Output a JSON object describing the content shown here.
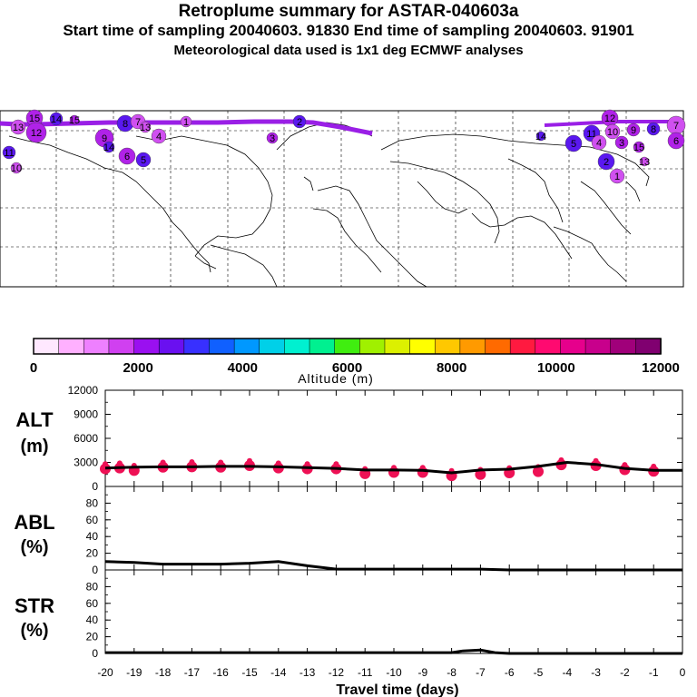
{
  "header": {
    "title": "Retroplume summary for ASTAR-040603a",
    "sampling": "Start time of sampling 20040603. 91830     End time of sampling 20040603. 91901",
    "met": "Meteorological data used is 1x1 deg ECMWF analyses"
  },
  "colors": {
    "line": "#000000",
    "track": "#9a1fe6",
    "alt_dots": "#ee1155",
    "colorbar": [
      "#ffe8ff",
      "#ffb0ff",
      "#ee80ff",
      "#d040f0",
      "#9a10f0",
      "#6a10f0",
      "#3830ff",
      "#1060ff",
      "#0098ff",
      "#00d0e8",
      "#00f0d0",
      "#00f090",
      "#40ee10",
      "#a0f000",
      "#dcf000",
      "#ffff00",
      "#ffc800",
      "#ff9a00",
      "#ff6a00",
      "#ff1a40",
      "#ff0a70",
      "#e6008c",
      "#c8008c",
      "#a0007a",
      "#800070"
    ]
  },
  "colorbar": {
    "ticks": [
      "0",
      "2000",
      "4000",
      "6000",
      "8000",
      "10000",
      "12000"
    ],
    "label": "Altitude (m)"
  },
  "map": {
    "plume_labels": [
      "15",
      "14",
      "13",
      "12",
      "11",
      "10",
      "9",
      "8",
      "7",
      "6",
      "5",
      "4",
      "3",
      "2",
      "1"
    ]
  },
  "chart_data": [
    {
      "type": "line",
      "name": "alt",
      "ylabel": [
        "ALT",
        "(m)"
      ],
      "yticks": [
        0,
        3000,
        6000,
        9000,
        12000
      ],
      "ylim": [
        0,
        12000
      ],
      "x": [
        -20,
        -19,
        -18,
        -17,
        -16,
        -15,
        -14,
        -13,
        -12,
        -11,
        -10,
        -9,
        -8,
        -7,
        -6,
        -5,
        -4,
        -3,
        -2,
        -1,
        0
      ],
      "values": [
        2300,
        2400,
        2450,
        2450,
        2500,
        2500,
        2450,
        2350,
        2250,
        2050,
        2050,
        2000,
        1700,
        2050,
        2150,
        2500,
        3000,
        2750,
        2250,
        2000,
        2000
      ],
      "dots": [
        [
          -20,
          2200
        ],
        [
          -19.5,
          2300
        ],
        [
          -19,
          2000
        ],
        [
          -18,
          2400
        ],
        [
          -17,
          2450
        ],
        [
          -16,
          2400
        ],
        [
          -15,
          2600
        ],
        [
          -14,
          2300
        ],
        [
          -13,
          2200
        ],
        [
          -12,
          2200
        ],
        [
          -11,
          1600
        ],
        [
          -10,
          1750
        ],
        [
          -9,
          1750
        ],
        [
          -8,
          1350
        ],
        [
          -7,
          1500
        ],
        [
          -6,
          1700
        ],
        [
          -5,
          1850
        ],
        [
          -4.2,
          2700
        ],
        [
          -3,
          2600
        ],
        [
          -2,
          2100
        ],
        [
          -1,
          1900
        ]
      ]
    },
    {
      "type": "line",
      "name": "abl",
      "ylabel": [
        "ABL",
        "(%)"
      ],
      "yticks": [
        0,
        20,
        40,
        60,
        80
      ],
      "ylim": [
        0,
        100
      ],
      "x": [
        -20,
        -19,
        -18,
        -17,
        -16,
        -15,
        -14,
        -13,
        -12,
        -11,
        -10,
        -9,
        -8,
        -7,
        -6,
        -5,
        -4,
        -3,
        -2,
        -1,
        0
      ],
      "values": [
        10,
        9,
        7,
        7,
        7,
        8,
        10,
        5,
        1,
        1,
        1,
        1,
        1,
        1,
        0,
        0,
        0,
        0,
        0,
        0,
        0
      ]
    },
    {
      "type": "line",
      "name": "str",
      "ylabel": [
        "STR",
        "(%)"
      ],
      "yticks": [
        0,
        20,
        40,
        60,
        80
      ],
      "ylim": [
        0,
        100
      ],
      "x": [
        -20,
        -19,
        -18,
        -17,
        -16,
        -15,
        -14,
        -13,
        -12,
        -11,
        -10,
        -9,
        -8,
        -7.6,
        -7,
        -6.5,
        -6,
        -5,
        -4,
        -3,
        -2,
        -1,
        0
      ],
      "values": [
        1,
        1,
        1,
        1,
        1,
        1,
        1,
        1,
        1,
        1,
        1,
        1,
        1,
        3,
        4,
        1,
        0,
        0,
        0,
        0,
        0,
        0,
        0
      ]
    }
  ],
  "xaxis": {
    "ticks": [
      "-20",
      "-19",
      "-18",
      "-17",
      "-16",
      "-15",
      "-14",
      "-13",
      "-12",
      "-11",
      "-10",
      "-9",
      "-8",
      "-7",
      "-6",
      "-5",
      "-4",
      "-3",
      "-2",
      "-1",
      "0"
    ],
    "label": "Travel time (days)"
  }
}
